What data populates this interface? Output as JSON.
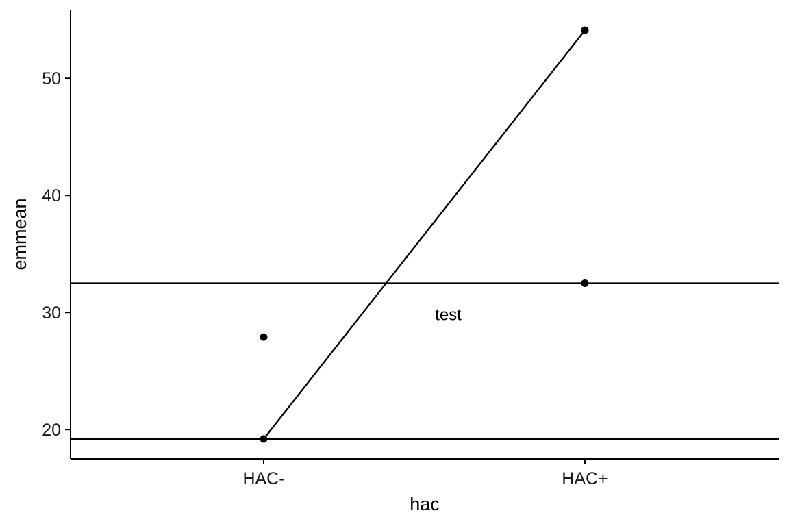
{
  "chart_data": {
    "type": "line",
    "xlabel": "hac",
    "ylabel": "emmean",
    "categories": [
      "HAC-",
      "HAC+"
    ],
    "yticks": [
      20,
      30,
      40,
      50
    ],
    "ylim": [
      17.5,
      55.8
    ],
    "grid": false,
    "points": [
      {
        "x": "HAC-",
        "y": 27.9
      },
      {
        "x": "HAC-",
        "y": 19.2
      },
      {
        "x": "HAC+",
        "y": 54.1
      },
      {
        "x": "HAC+",
        "y": 32.5
      }
    ],
    "line": [
      {
        "x": "HAC-",
        "y": 19.2
      },
      {
        "x": "HAC+",
        "y": 54.1
      }
    ],
    "hlines": [
      32.5,
      19.2
    ],
    "annotation": {
      "text": "test",
      "x": 1.5,
      "y": 29.8
    },
    "colors": {
      "marks": "#000000",
      "axis": "#000000",
      "text": "#1a1a1a"
    }
  }
}
